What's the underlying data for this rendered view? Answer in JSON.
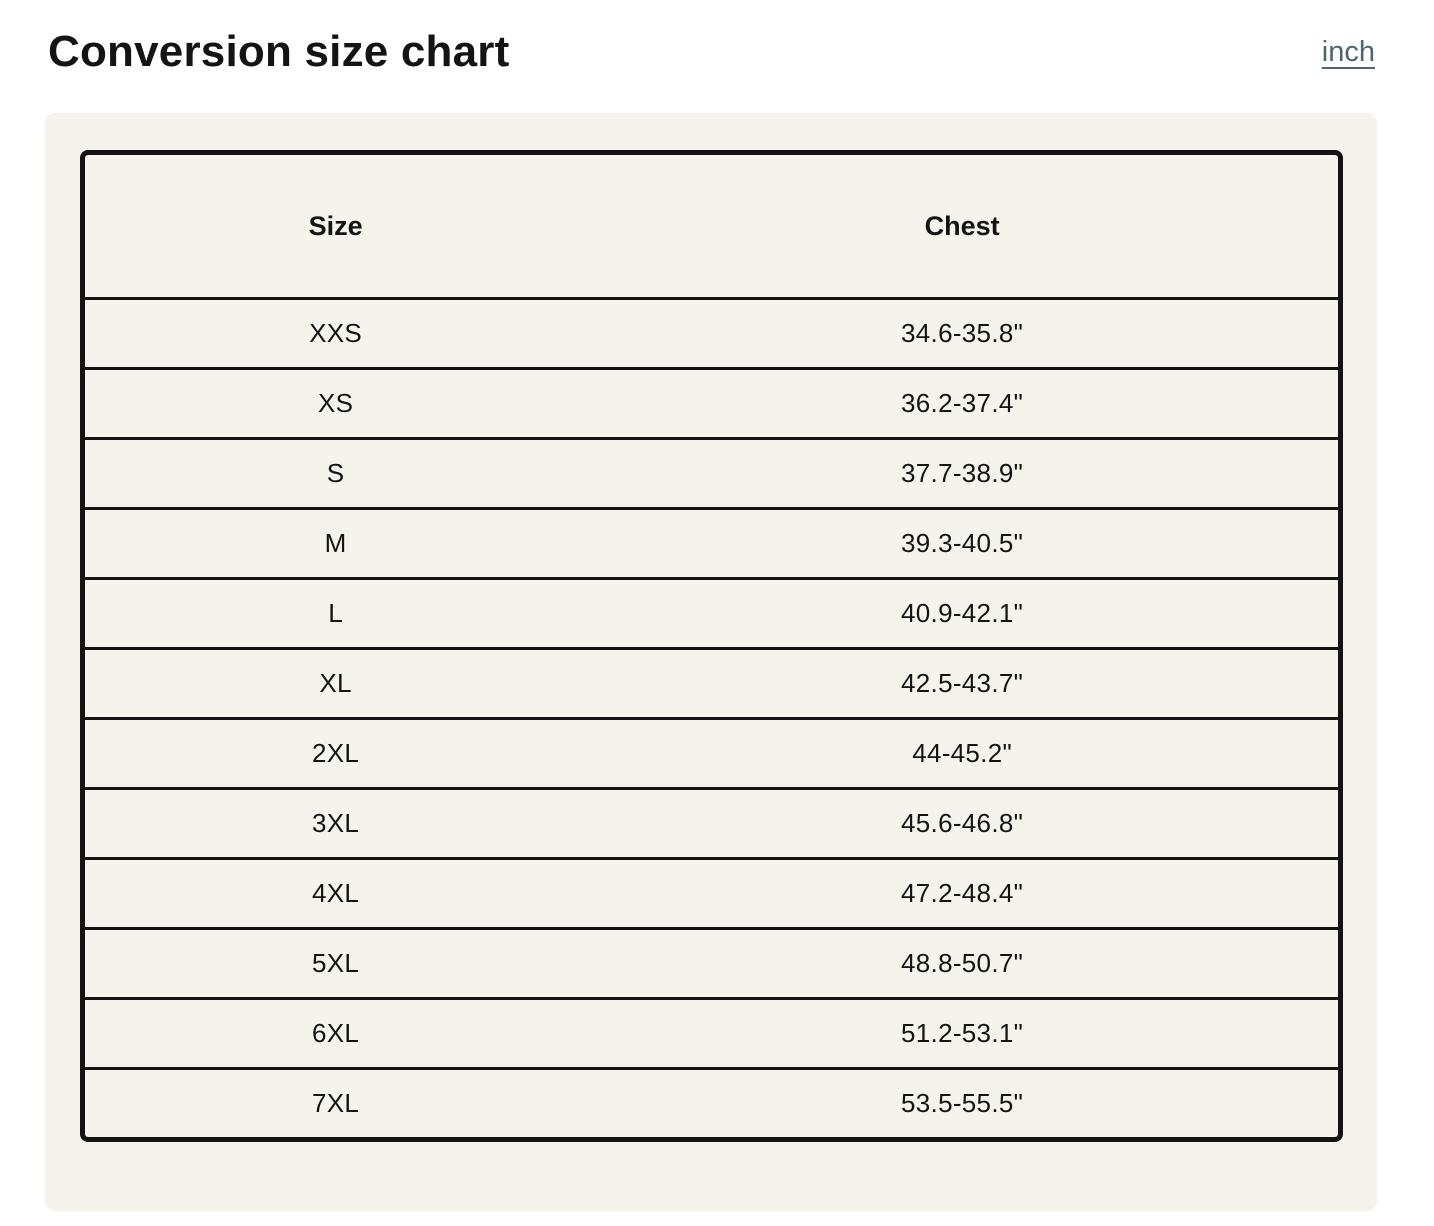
{
  "page": {
    "title": "Conversion size chart",
    "unit_link_label": "inch"
  },
  "colors": {
    "page_bg": "#ffffff",
    "panel_bg": "#f5f3ec",
    "table_border": "#131313",
    "text": "#141414",
    "link": "#4d6671"
  },
  "table": {
    "columns": [
      "Size",
      "Chest"
    ],
    "rows": [
      {
        "size": "XXS",
        "chest": "34.6-35.8\""
      },
      {
        "size": "XS",
        "chest": "36.2-37.4\""
      },
      {
        "size": "S",
        "chest": "37.7-38.9\""
      },
      {
        "size": "M",
        "chest": "39.3-40.5\""
      },
      {
        "size": "L",
        "chest": "40.9-42.1\""
      },
      {
        "size": "XL",
        "chest": "42.5-43.7\""
      },
      {
        "size": "2XL",
        "chest": "44-45.2\""
      },
      {
        "size": "3XL",
        "chest": "45.6-46.8\""
      },
      {
        "size": "4XL",
        "chest": "47.2-48.4\""
      },
      {
        "size": "5XL",
        "chest": "48.8-50.7\""
      },
      {
        "size": "6XL",
        "chest": "51.2-53.1\""
      },
      {
        "size": "7XL",
        "chest": "53.5-55.5\""
      }
    ]
  }
}
